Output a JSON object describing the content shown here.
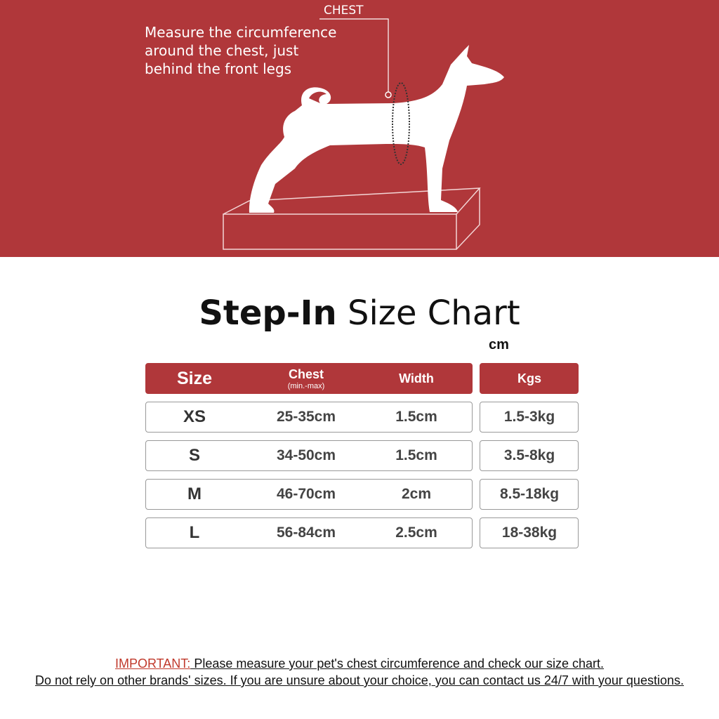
{
  "banner": {
    "chest_label": "CHEST",
    "instruction_lines": [
      "Measure the circumference",
      "around the chest, just",
      "behind the front legs"
    ],
    "background_color": "#b0373a"
  },
  "title": {
    "bold": "Step-In",
    "rest": " Size Chart"
  },
  "unit": "cm",
  "table": {
    "headers": {
      "size": "Size",
      "chest": "Chest",
      "chest_sub": "(min.-max)",
      "width": "Width",
      "kgs": "Kgs"
    },
    "rows": [
      {
        "size": "XS",
        "chest": "25-35cm",
        "width": "1.5cm",
        "kgs": "1.5-3kg"
      },
      {
        "size": "S",
        "chest": "34-50cm",
        "width": "1.5cm",
        "kgs": "3.5-8kg"
      },
      {
        "size": "M",
        "chest": "46-70cm",
        "width": "2cm",
        "kgs": "8.5-18kg"
      },
      {
        "size": "L",
        "chest": "56-84cm",
        "width": "2.5cm",
        "kgs": "18-38kg"
      }
    ]
  },
  "footer": {
    "important_label": "IMPORTANT:",
    "line1": " Please measure your pet's chest circumference and check our size chart.",
    "line2": "Do not rely on other brands' sizes. If you are unsure about your choice, you can contact us 24/7 with your questions."
  }
}
